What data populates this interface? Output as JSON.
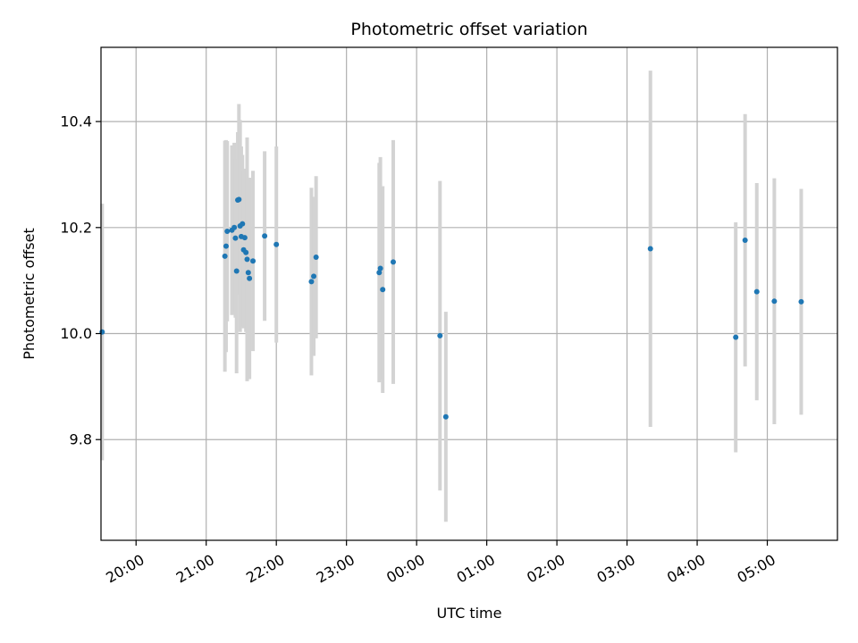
{
  "chart_data": {
    "type": "scatter",
    "title": "Photometric offset variation",
    "xlabel": "UTC time",
    "ylabel": "Photometric offset",
    "grid": true,
    "x_axis_type": "time",
    "xlim": [
      "19:30",
      "06:00"
    ],
    "ylim": [
      9.61,
      10.54
    ],
    "x_ticks": [
      "20:00",
      "21:00",
      "22:00",
      "23:00",
      "00:00",
      "01:00",
      "02:00",
      "03:00",
      "04:00",
      "05:00"
    ],
    "y_ticks": [
      9.8,
      10.0,
      10.2,
      10.4
    ],
    "y_tick_labels": [
      "9.8",
      "10.0",
      "10.2",
      "10.4"
    ],
    "marker_color": "#1f77b4",
    "errorbar_color": "#d3d3d3",
    "points": [
      {
        "time": "19:31",
        "y": 10.003,
        "err": 0.242
      },
      {
        "time": "21:16",
        "y": 10.146,
        "err": 0.218
      },
      {
        "time": "21:17",
        "y": 10.165,
        "err": 0.2
      },
      {
        "time": "21:18",
        "y": 10.193,
        "err": 0.17
      },
      {
        "time": "21:22",
        "y": 10.195,
        "err": 0.16
      },
      {
        "time": "21:24",
        "y": 10.2,
        "err": 0.16
      },
      {
        "time": "21:25",
        "y": 10.18,
        "err": 0.15
      },
      {
        "time": "21:26",
        "y": 10.118,
        "err": 0.193
      },
      {
        "time": "21:27",
        "y": 10.252,
        "err": 0.128
      },
      {
        "time": "21:28",
        "y": 10.253,
        "err": 0.18
      },
      {
        "time": "21:29",
        "y": 10.203,
        "err": 0.2
      },
      {
        "time": "21:30",
        "y": 10.183,
        "err": 0.17
      },
      {
        "time": "21:31",
        "y": 10.207,
        "err": 0.13
      },
      {
        "time": "21:32",
        "y": 10.158,
        "err": 0.148
      },
      {
        "time": "21:33",
        "y": 10.181,
        "err": 0.13
      },
      {
        "time": "21:34",
        "y": 10.153,
        "err": 0.15
      },
      {
        "time": "21:35",
        "y": 10.14,
        "err": 0.23
      },
      {
        "time": "21:36",
        "y": 10.115,
        "err": 0.15
      },
      {
        "time": "21:37",
        "y": 10.104,
        "err": 0.19
      },
      {
        "time": "21:40",
        "y": 10.137,
        "err": 0.17
      },
      {
        "time": "21:50",
        "y": 10.184,
        "err": 0.16
      },
      {
        "time": "22:00",
        "y": 10.168,
        "err": 0.185
      },
      {
        "time": "22:30",
        "y": 10.098,
        "err": 0.177
      },
      {
        "time": "22:32",
        "y": 10.108,
        "err": 0.15
      },
      {
        "time": "22:34",
        "y": 10.144,
        "err": 0.153
      },
      {
        "time": "23:28",
        "y": 10.115,
        "err": 0.207
      },
      {
        "time": "23:29",
        "y": 10.123,
        "err": 0.21
      },
      {
        "time": "23:31",
        "y": 10.083,
        "err": 0.195
      },
      {
        "time": "23:40",
        "y": 10.135,
        "err": 0.23
      },
      {
        "time": "00:20",
        "y": 9.996,
        "err": 0.292
      },
      {
        "time": "00:25",
        "y": 9.843,
        "err": 0.198
      },
      {
        "time": "03:20",
        "y": 10.16,
        "err": 0.336
      },
      {
        "time": "04:33",
        "y": 9.993,
        "err": 0.217
      },
      {
        "time": "04:41",
        "y": 10.176,
        "err": 0.238
      },
      {
        "time": "04:51",
        "y": 10.079,
        "err": 0.205
      },
      {
        "time": "05:06",
        "y": 10.061,
        "err": 0.232
      },
      {
        "time": "05:29",
        "y": 10.06,
        "err": 0.213
      }
    ]
  }
}
